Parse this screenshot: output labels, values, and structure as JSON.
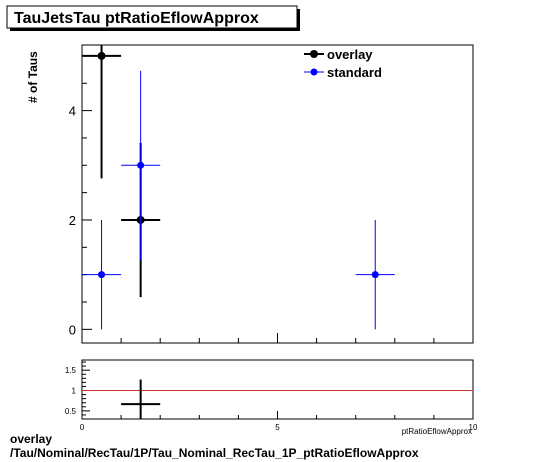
{
  "title": "TauJetsTau ptRatioEflowApprox",
  "footer": {
    "line1": "overlay",
    "line2": "/Tau/Nominal/RecTau/1P/Tau_Nominal_RecTau_1P_ptRatioEflowApprox"
  },
  "chart_data": [
    {
      "type": "scatter",
      "ylabel": "# of Taus",
      "xlabel": "ptRatioEflowApprox",
      "xlim": [
        0,
        10
      ],
      "ylim": [
        -0.25,
        5.2
      ],
      "y_ticks": [
        "0",
        "2",
        "4"
      ],
      "legend_position": "top-right",
      "series": [
        {
          "name": "overlay",
          "color": "#000000",
          "points": [
            {
              "x": 0.5,
              "xerr": 0.5,
              "y": 5,
              "ylo": 2.76,
              "yhi": 5.2
            },
            {
              "x": 1.5,
              "xerr": 0.5,
              "y": 2,
              "ylo": 0.59,
              "yhi": 3.41
            }
          ]
        },
        {
          "name": "standard",
          "color": "#0000ff",
          "points": [
            {
              "x": 0.5,
              "xerr": 0.5,
              "y": 1,
              "ylo": 0,
              "yhi": 2
            },
            {
              "x": 1.5,
              "xerr": 0.5,
              "y": 3,
              "ylo": 1.27,
              "yhi": 4.73
            },
            {
              "x": 7.5,
              "xerr": 0.5,
              "y": 1,
              "ylo": 0,
              "yhi": 2
            }
          ]
        }
      ]
    },
    {
      "type": "scatter",
      "xlim": [
        0,
        10
      ],
      "ylim": [
        0.3,
        1.75
      ],
      "x_ticks": [
        "0",
        "5",
        "10"
      ],
      "y_ticks": [
        "0.5",
        "1",
        "1.5"
      ],
      "reference_line": {
        "y": 1,
        "color": "#cc3333"
      },
      "series": [
        {
          "color": "#000000",
          "points": [
            {
              "x": 1.5,
              "xerr": 0.5,
              "y": 0.667,
              "ylo": 0.3,
              "yhi": 1.27
            }
          ]
        }
      ]
    }
  ]
}
